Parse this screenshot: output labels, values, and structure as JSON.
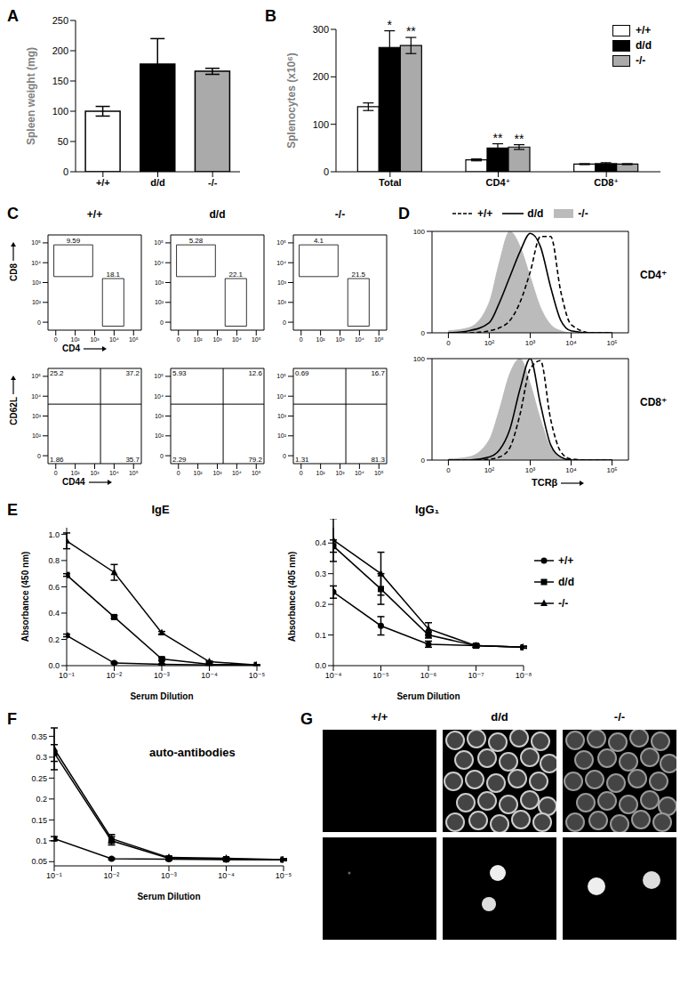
{
  "chart_data": [
    {
      "panel_label": "A",
      "type": "bar",
      "categories": [
        "+/+",
        "d/d",
        "-/-"
      ],
      "values": [
        100,
        178,
        166
      ],
      "errors": [
        8,
        42,
        5
      ],
      "colors": [
        "#ffffff",
        "#000000",
        "#aaaaaa"
      ],
      "ylabel": "Spleen weight (mg)",
      "ylim": [
        0,
        250
      ],
      "yticks": [
        0,
        50,
        100,
        150,
        200,
        250
      ]
    },
    {
      "panel_label": "B",
      "type": "bar",
      "categories": [
        "Total",
        "CD4⁺",
        "CD8⁺"
      ],
      "series": [
        {
          "name": "+/+",
          "color": "#ffffff",
          "values": [
            137,
            25,
            16
          ],
          "errors": [
            8,
            2,
            1
          ]
        },
        {
          "name": "d/d",
          "color": "#000000",
          "values": [
            262,
            50,
            17
          ],
          "errors": [
            35,
            9,
            2
          ]
        },
        {
          "name": "-/-",
          "color": "#aaaaaa",
          "values": [
            266,
            52,
            16
          ],
          "errors": [
            17,
            5,
            1
          ]
        }
      ],
      "annotations": [
        {
          "category": "Total",
          "series": "d/d",
          "text": "*"
        },
        {
          "category": "Total",
          "series": "-/-",
          "text": "**"
        },
        {
          "category": "CD4⁺",
          "series": "d/d",
          "text": "**"
        },
        {
          "category": "CD4⁺",
          "series": "-/-",
          "text": "**"
        }
      ],
      "ylabel": "Splenocytes (x10⁶)",
      "ylim": [
        0,
        300
      ],
      "yticks": [
        0,
        100,
        200,
        300
      ],
      "legend": "top-right"
    },
    {
      "panel_label": "C",
      "type": "flow_cytometry",
      "columns": [
        "+/+",
        "d/d",
        "-/-"
      ],
      "xlim": [
        -0.4,
        4.4
      ],
      "ylim": [
        -0.4,
        4.4
      ],
      "xticks": [
        0,
        {
          "value": 1,
          "label": "10²"
        },
        {
          "value": 2,
          "label": "10³"
        },
        {
          "value": 3,
          "label": "10⁴"
        },
        {
          "value": 4,
          "label": "10⁵"
        }
      ],
      "yticks": [
        0,
        {
          "value": 1,
          "label": "10²"
        },
        {
          "value": 2,
          "label": "10³"
        },
        {
          "value": 3,
          "label": "10⁴"
        },
        {
          "value": 4,
          "label": "10⁵"
        }
      ],
      "rows": [
        {
          "x_label": "CD4",
          "y_label": "CD8",
          "plots": [
            {
              "gates": [
                {
                  "x": [
                    -0.1,
                    1.9
                  ],
                  "y": [
                    2.3,
                    3.9
                  ],
                  "value": 9.59
                },
                {
                  "x": [
                    2.4,
                    3.5
                  ],
                  "y": [
                    -0.2,
                    2.2
                  ],
                  "value": 18.1
                }
              ]
            },
            {
              "gates": [
                {
                  "x": [
                    -0.1,
                    1.9
                  ],
                  "y": [
                    2.3,
                    3.9
                  ],
                  "value": 5.28
                },
                {
                  "x": [
                    2.4,
                    3.5
                  ],
                  "y": [
                    -0.2,
                    2.2
                  ],
                  "value": 22.1
                }
              ]
            },
            {
              "gates": [
                {
                  "x": [
                    -0.1,
                    1.9
                  ],
                  "y": [
                    2.3,
                    3.9
                  ],
                  "value": 4.1
                },
                {
                  "x": [
                    2.4,
                    3.5
                  ],
                  "y": [
                    -0.2,
                    2.2
                  ],
                  "value": 21.5
                }
              ]
            }
          ]
        },
        {
          "x_label": "CD44",
          "y_label": "CD62L",
          "plots": [
            {
              "quadrant": {
                "x": 2.3,
                "y": 2.6
              },
              "values": {
                "upper_left": 25.2,
                "upper_right": 37.2,
                "lower_left": 1.86,
                "lower_right": 35.7
              }
            },
            {
              "quadrant": {
                "x": 2.3,
                "y": 2.6
              },
              "values": {
                "upper_left": 5.93,
                "upper_right": 12.6,
                "lower_left": 2.29,
                "lower_right": 79.2
              }
            },
            {
              "quadrant": {
                "x": 2.3,
                "y": 2.6
              },
              "values": {
                "upper_left": 0.69,
                "upper_right": 16.7,
                "lower_left": 1.31,
                "lower_right": 81.3
              }
            }
          ]
        }
      ]
    },
    {
      "panel_label": "D",
      "type": "line",
      "legend": "top",
      "x_label": "TCRβ",
      "x": [
        0,
        0.5,
        1,
        1.25,
        1.5,
        1.75,
        2,
        2.25,
        2.5,
        2.75,
        3,
        3.5,
        4
      ],
      "xlim": [
        -0.4,
        4.4
      ],
      "xticks": [
        0,
        {
          "value": 1,
          "label": "10²"
        },
        {
          "value": 2,
          "label": "10³"
        },
        {
          "value": 3,
          "label": "10⁴"
        },
        {
          "value": 4,
          "label": "10⁵"
        }
      ],
      "ylim": [
        0,
        100
      ],
      "yticks": [
        0,
        100
      ],
      "charts": [
        {
          "title": "CD4⁺",
          "series": [
            {
              "name": "+/+",
              "color": "#000000",
              "type": "line",
              "line_style": "dashed",
              "values": [
                0,
                0,
                2,
                5,
                12,
                30,
                60,
                95,
                95,
                40,
                8,
                0,
                0
              ]
            },
            {
              "name": "d/d",
              "color": "#000000",
              "type": "line",
              "line_style": "solid",
              "values": [
                0,
                2,
                10,
                30,
                55,
                80,
                98,
                85,
                45,
                12,
                2,
                0,
                0
              ]
            },
            {
              "name": "-/-",
              "color": "#bbbbbb",
              "type": "area",
              "values": [
                2,
                5,
                30,
                70,
                100,
                85,
                55,
                25,
                8,
                2,
                0,
                0,
                0
              ]
            }
          ]
        },
        {
          "title": "CD8⁺",
          "series": [
            {
              "name": "+/+",
              "color": "#000000",
              "type": "line",
              "line_style": "dashed",
              "values": [
                0,
                0,
                1,
                3,
                12,
                45,
                90,
                98,
                40,
                8,
                1,
                0,
                0
              ]
            },
            {
              "name": "d/d",
              "color": "#000000",
              "type": "line",
              "line_style": "solid",
              "values": [
                0,
                0,
                3,
                10,
                30,
                70,
                100,
                55,
                15,
                3,
                0,
                0,
                0
              ]
            },
            {
              "name": "-/-",
              "color": "#bbbbbb",
              "type": "area",
              "values": [
                1,
                3,
                20,
                50,
                85,
                100,
                75,
                40,
                12,
                3,
                0,
                0,
                0
              ]
            }
          ]
        }
      ]
    },
    {
      "panel_label": "E",
      "type": "line",
      "title": "IgE",
      "xlabel": "Serum Dilution",
      "ylabel": "Absorbance (450 nm)",
      "log": "x",
      "x": [
        0.1,
        0.01,
        0.001,
        0.0001,
        1e-05
      ],
      "xlim": [
        0.1,
        1e-05
      ],
      "xticks": [
        {
          "value": 0.1,
          "label": "10⁻¹"
        },
        {
          "value": 0.01,
          "label": "10⁻²"
        },
        {
          "value": 0.001,
          "label": "10⁻³"
        },
        {
          "value": 0.0001,
          "label": "10⁻⁴"
        },
        {
          "value": 1e-05,
          "label": "10⁻⁵"
        }
      ],
      "ylim": [
        0,
        1.05
      ],
      "yticks": [
        {
          "value": 0,
          "label": "0.0"
        },
        0.2,
        0.4,
        0.6,
        0.8,
        {
          "value": 1,
          "label": "1.0"
        }
      ],
      "series": [
        {
          "name": "+/+",
          "color": "#000000",
          "marker": "circle",
          "values": [
            0.23,
            0.02,
            0.01,
            0.005,
            0.005
          ],
          "errors": [
            0.01,
            0.005,
            0.003,
            0.002,
            0.002
          ]
        },
        {
          "name": "d/d",
          "color": "#000000",
          "marker": "square",
          "values": [
            0.69,
            0.37,
            0.05,
            0.01,
            0.005
          ],
          "errors": [
            0.01,
            0.01,
            0.01,
            0.005,
            0.002
          ]
        },
        {
          "name": "-/-",
          "color": "#000000",
          "marker": "triangle",
          "values": [
            0.95,
            0.71,
            0.25,
            0.03,
            0.005
          ],
          "errors": [
            0.06,
            0.06,
            0.01,
            0.005,
            0.002
          ]
        }
      ]
    },
    {
      "type": "line",
      "title": "IgG₁",
      "xlabel": "Serum Dilution",
      "ylabel": "Absorbance (405 nm)",
      "log": "x",
      "legend": "right",
      "x": [
        0.0001,
        1e-05,
        1e-06,
        1e-07,
        1e-08
      ],
      "xlim": [
        0.0001,
        1e-08
      ],
      "xticks": [
        {
          "value": 0.0001,
          "label": "10⁻⁴"
        },
        {
          "value": 1e-05,
          "label": "10⁻⁵"
        },
        {
          "value": 1e-06,
          "label": "10⁻⁶"
        },
        {
          "value": 1e-07,
          "label": "10⁻⁷"
        },
        {
          "value": 1e-08,
          "label": "10⁻⁸"
        }
      ],
      "ylim": [
        0,
        0.45
      ],
      "yticks": [
        {
          "value": 0,
          "label": "0.0"
        },
        0.1,
        0.2,
        0.3,
        0.4
      ],
      "series": [
        {
          "name": "+/+",
          "color": "#000000",
          "marker": "circle",
          "values": [
            0.24,
            0.13,
            0.07,
            0.065,
            0.06
          ],
          "errors": [
            0.02,
            0.03,
            0.01,
            0.005,
            0.003
          ]
        },
        {
          "name": "d/d",
          "color": "#000000",
          "marker": "square",
          "values": [
            0.39,
            0.25,
            0.1,
            0.065,
            0.06
          ],
          "errors": [
            0.02,
            0.05,
            0.01,
            0.005,
            0.003
          ]
        },
        {
          "name": "-/-",
          "color": "#000000",
          "marker": "triangle",
          "values": [
            0.41,
            0.3,
            0.12,
            0.065,
            0.06
          ],
          "errors": [
            0.07,
            0.07,
            0.02,
            0.005,
            0.003
          ]
        }
      ]
    },
    {
      "panel_label": "F",
      "type": "line",
      "title": "auto-antibodies",
      "xlabel": "Serum Dilution",
      "log": "x",
      "x": [
        0.1,
        0.01,
        0.001,
        0.0001,
        1e-05
      ],
      "xlim": [
        0.1,
        1e-05
      ],
      "xticks": [
        {
          "value": 0.1,
          "label": "10⁻¹"
        },
        {
          "value": 0.01,
          "label": "10⁻²"
        },
        {
          "value": 0.001,
          "label": "10⁻³"
        },
        {
          "value": 0.0001,
          "label": "10⁻⁴"
        },
        {
          "value": 1e-05,
          "label": "10⁻⁵"
        }
      ],
      "ylim": [
        0.04,
        0.37
      ],
      "yticks": [
        0.05,
        0.1,
        0.15,
        0.2,
        0.25,
        0.3,
        0.35
      ],
      "series": [
        {
          "name": "+/+",
          "color": "#000000",
          "marker": "circle",
          "values": [
            0.105,
            0.057,
            0.056,
            0.055,
            0.055
          ],
          "errors": [
            0.005,
            0.002,
            0.002,
            0.002,
            0.002
          ]
        },
        {
          "name": "d/d",
          "color": "#000000",
          "marker": "square",
          "values": [
            0.31,
            0.1,
            0.058,
            0.056,
            0.055
          ],
          "errors": [
            0.02,
            0.01,
            0.003,
            0.002,
            0.002
          ]
        },
        {
          "name": "-/-",
          "color": "#000000",
          "marker": "triangle",
          "values": [
            0.32,
            0.105,
            0.06,
            0.058,
            0.055
          ],
          "errors": [
            0.05,
            0.01,
            0.003,
            0.002,
            0.002
          ]
        }
      ]
    },
    {
      "panel_label": "G",
      "type": "image",
      "columns": [
        "+/+",
        "d/d",
        "-/-"
      ]
    }
  ]
}
